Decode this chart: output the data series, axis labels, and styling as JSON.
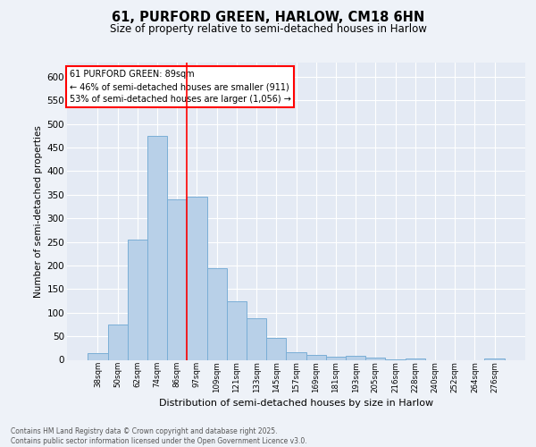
{
  "title1": "61, PURFORD GREEN, HARLOW, CM18 6HN",
  "title2": "Size of property relative to semi-detached houses in Harlow",
  "xlabel": "Distribution of semi-detached houses by size in Harlow",
  "ylabel": "Number of semi-detached properties",
  "categories": [
    "38sqm",
    "50sqm",
    "62sqm",
    "74sqm",
    "86sqm",
    "97sqm",
    "109sqm",
    "121sqm",
    "133sqm",
    "145sqm",
    "157sqm",
    "169sqm",
    "181sqm",
    "193sqm",
    "205sqm",
    "216sqm",
    "228sqm",
    "240sqm",
    "252sqm",
    "264sqm",
    "276sqm"
  ],
  "values": [
    15,
    75,
    255,
    475,
    340,
    345,
    195,
    125,
    88,
    46,
    16,
    10,
    6,
    9,
    4,
    1,
    3,
    0,
    0,
    0,
    3
  ],
  "bar_color": "#b8d0e8",
  "bar_edge_color": "#7aaed6",
  "property_line_x": 4.5,
  "annotation_text": "61 PURFORD GREEN: 89sqm\n← 46% of semi-detached houses are smaller (911)\n53% of semi-detached houses are larger (1,056) →",
  "ylim": [
    0,
    630
  ],
  "yticks": [
    0,
    50,
    100,
    150,
    200,
    250,
    300,
    350,
    400,
    450,
    500,
    550,
    600
  ],
  "footnote": "Contains HM Land Registry data © Crown copyright and database right 2025.\nContains public sector information licensed under the Open Government Licence v3.0.",
  "bg_color": "#eef2f8",
  "plot_bg_color": "#e4eaf4",
  "grid_color": "#ffffff"
}
